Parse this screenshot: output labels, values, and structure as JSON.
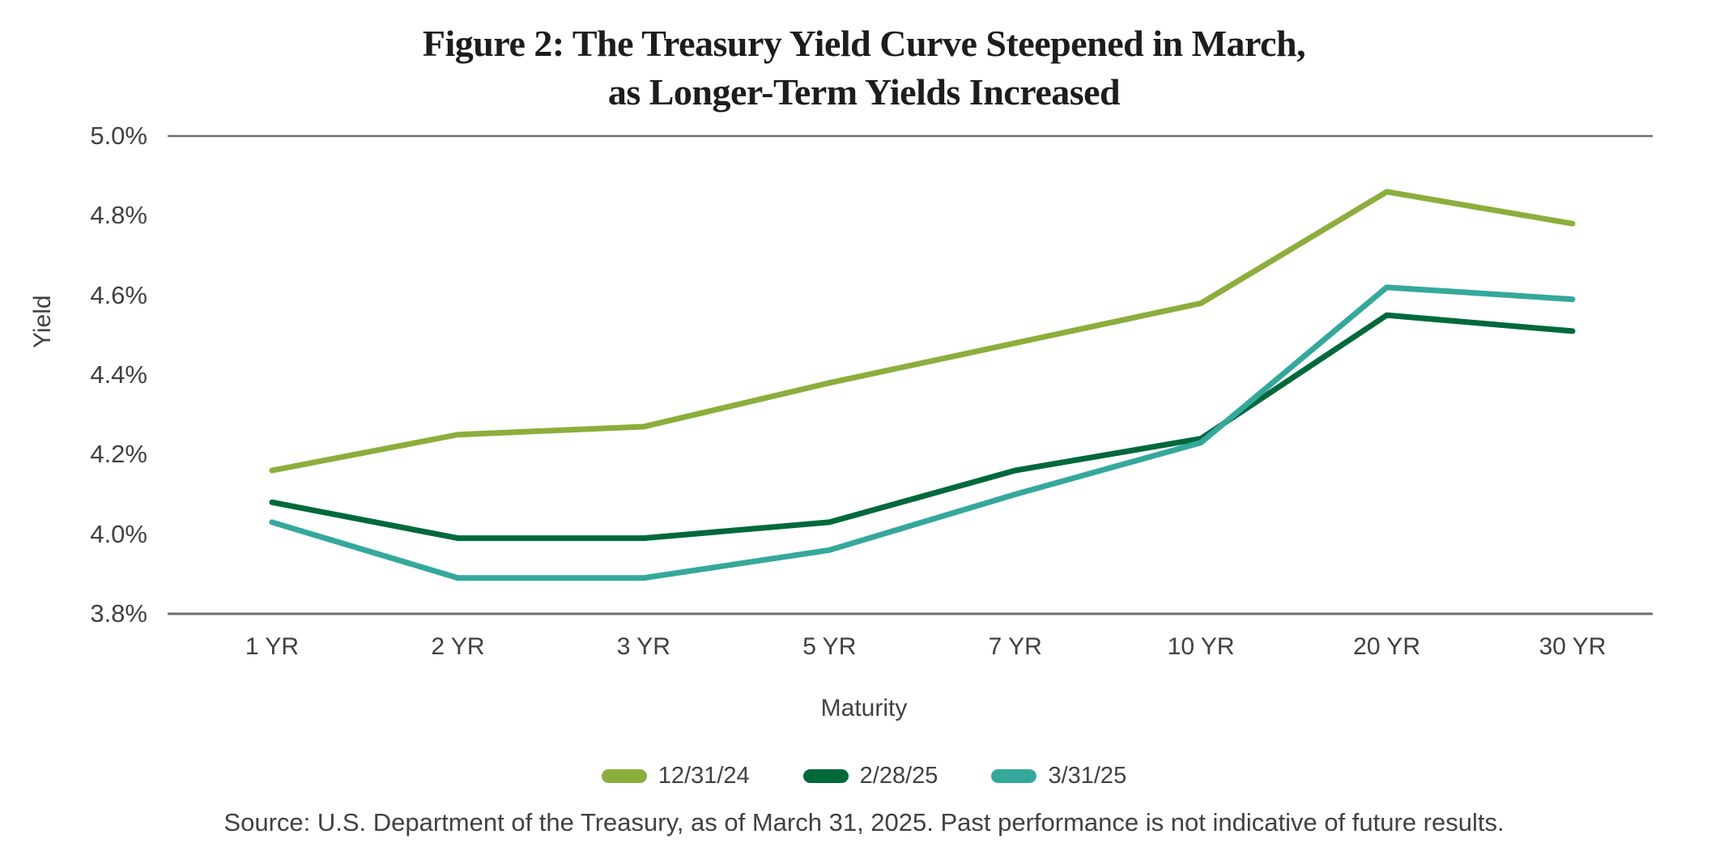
{
  "figure": {
    "title_line1": "Figure 2: The Treasury Yield Curve Steepened in March,",
    "title_line2": "as Longer-Term Yields Increased",
    "source": "Source: U.S. Department of the Treasury, as of March 31, 2025. Past performance is not indicative of future results."
  },
  "chart_data": {
    "type": "line",
    "title": "Figure 2: The Treasury Yield Curve Steepened in March, as Longer-Term Yields Increased",
    "xlabel": "Maturity",
    "ylabel": "Yield",
    "categories": [
      "1 YR",
      "2 YR",
      "3 YR",
      "5 YR",
      "7 YR",
      "10 YR",
      "20 YR",
      "30 YR"
    ],
    "y_ticks": [
      "5.0%",
      "4.8%",
      "4.6%",
      "4.4%",
      "4.2%",
      "4.0%",
      "3.8%"
    ],
    "ylim": [
      3.8,
      5.0
    ],
    "grid": "horizontal rules at top (5.0%) and bottom (3.8%) only",
    "legend_position": "bottom",
    "series": [
      {
        "name": "12/31/24",
        "color": "#8CAE3C",
        "values": [
          4.16,
          4.25,
          4.27,
          4.38,
          4.48,
          4.58,
          4.86,
          4.78
        ]
      },
      {
        "name": "2/28/25",
        "color": "#00693C",
        "values": [
          4.08,
          3.99,
          3.99,
          4.03,
          4.16,
          4.24,
          4.55,
          4.51
        ]
      },
      {
        "name": "3/31/25",
        "color": "#35A89C",
        "values": [
          4.03,
          3.89,
          3.89,
          3.96,
          4.1,
          4.23,
          4.62,
          4.59
        ]
      }
    ]
  },
  "colors": {
    "background": "#FFFFFF",
    "axis_line": "#6D6E71",
    "text": "#414042",
    "title_text": "#1E1C1D"
  }
}
